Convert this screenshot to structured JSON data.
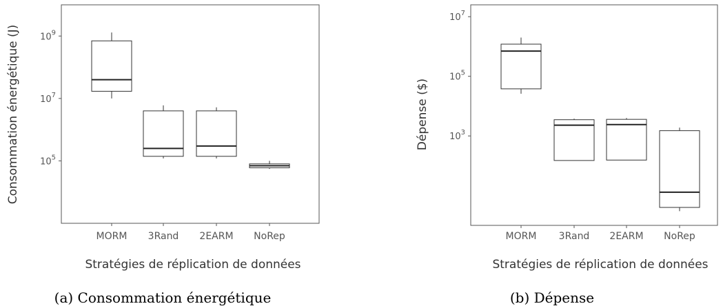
{
  "chart_data": [
    {
      "type": "boxplot",
      "caption": "(a) Consommation énergétique",
      "xlabel": "Stratégies de réplication de données",
      "ylabel": "Consommation énergétique (J)",
      "y_scale": "log10",
      "ylim": [
        1000,
        10000000000
      ],
      "y_ticks": [
        {
          "label_base": "10",
          "label_exp": "5",
          "value": 100000
        },
        {
          "label_base": "10",
          "label_exp": "7",
          "value": 10000000
        },
        {
          "label_base": "10",
          "label_exp": "9",
          "value": 1000000000
        }
      ],
      "grid": false,
      "categories": [
        "MORM",
        "3Rand",
        "2EARM",
        "NoRep"
      ],
      "boxes": [
        {
          "category": "MORM",
          "min": 10000000,
          "q1": 17000000,
          "median": 40000000,
          "q3": 700000000,
          "max": 1300000000
        },
        {
          "category": "3Rand",
          "min": 120000,
          "q1": 140000,
          "median": 250000,
          "q3": 4000000,
          "max": 6000000
        },
        {
          "category": "2EARM",
          "min": 120000,
          "q1": 140000,
          "median": 300000,
          "q3": 4000000,
          "max": 5200000
        },
        {
          "category": "NoRep",
          "min": 55000,
          "q1": 60000,
          "median": 70000,
          "q3": 80000,
          "max": 100000
        }
      ]
    },
    {
      "type": "boxplot",
      "caption": "(b) Dépense",
      "xlabel": "Stratégies de réplication de données",
      "ylabel": "Dépense ($)",
      "y_scale": "log10",
      "ylim": [
        1,
        25000000
      ],
      "y_ticks": [
        {
          "label_base": "10",
          "label_exp": "3",
          "value": 1000
        },
        {
          "label_base": "10",
          "label_exp": "5",
          "value": 100000
        },
        {
          "label_base": "10",
          "label_exp": "7",
          "value": 10000000
        }
      ],
      "grid": false,
      "categories": [
        "MORM",
        "3Rand",
        "2EARM",
        "NoRep"
      ],
      "boxes": [
        {
          "category": "MORM",
          "min": 26000,
          "q1": 38000,
          "median": 700000,
          "q3": 1200000,
          "max": 2000000
        },
        {
          "category": "3Rand",
          "min": 150,
          "q1": 150,
          "median": 2300,
          "q3": 3500,
          "max": 3800
        },
        {
          "category": "2EARM",
          "min": 155,
          "q1": 155,
          "median": 2400,
          "q3": 3600,
          "max": 4000
        },
        {
          "category": "NoRep",
          "min": 3,
          "q1": 4,
          "median": 13,
          "q3": 1500,
          "max": 1900
        }
      ]
    }
  ]
}
